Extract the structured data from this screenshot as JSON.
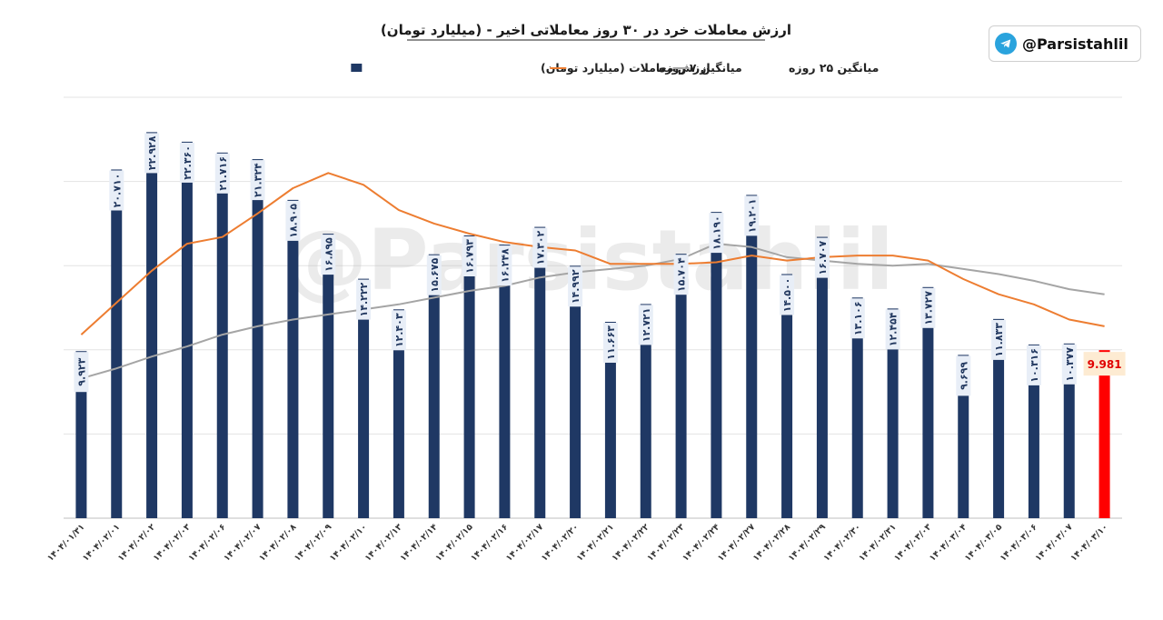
{
  "badge": {
    "handle": "@Parsistahlil",
    "icon": "telegram-icon"
  },
  "watermark": "@Parsistahlil",
  "colors": {
    "bars": "#1f3864",
    "last_bar": "#ff0000",
    "ma7": "#ed7d31",
    "ma25": "#a5a5a5",
    "label_bg": "#e8eef7"
  },
  "chart_data": {
    "type": "bar",
    "title": "ارزش معاملات خرد در ۳۰ روز معاملاتی اخیر - (میلیارد تومان)",
    "ylim": [
      0,
      25
    ],
    "grid": true,
    "legend_position": "top",
    "categories": [
      "۱۴۰۴/۰۱/۳۱",
      "۱۴۰۴/۰۲/۰۱",
      "۱۴۰۴/۰۲/۰۲",
      "۱۴۰۴/۰۲/۰۳",
      "۱۴۰۴/۰۲/۰۶",
      "۱۴۰۴/۰۲/۰۷",
      "۱۴۰۴/۰۲/۰۸",
      "۱۴۰۴/۰۲/۰۹",
      "۱۴۰۴/۰۲/۱۰",
      "۱۴۰۴/۰۲/۱۳",
      "۱۴۰۴/۰۲/۱۴",
      "۱۴۰۴/۰۲/۱۵",
      "۱۴۰۴/۰۲/۱۶",
      "۱۴۰۴/۰۲/۱۷",
      "۱۴۰۴/۰۲/۲۰",
      "۱۴۰۴/۰۲/۲۱",
      "۱۴۰۴/۰۲/۲۲",
      "۱۴۰۴/۰۲/۲۳",
      "۱۴۰۴/۰۲/۲۴",
      "۱۴۰۴/۰۲/۲۷",
      "۱۴۰۴/۰۲/۲۸",
      "۱۴۰۴/۰۲/۲۹",
      "۱۴۰۴/۰۲/۳۰",
      "۱۴۰۴/۰۲/۳۱",
      "۱۴۰۴/۰۳/۰۳",
      "۱۴۰۴/۰۳/۰۴",
      "۱۴۰۴/۰۳/۰۵",
      "۱۴۰۴/۰۳/۰۶",
      "۱۴۰۴/۰۳/۰۷",
      "۱۴۰۴/۰۳/۱۰"
    ],
    "series": [
      {
        "name": "ارزش معاملات (میلیارد تومان)",
        "type": "bar",
        "values": [
          9.923,
          20.71,
          22.928,
          22.36,
          21.716,
          21.324,
          18.905,
          16.895,
          14.222,
          12.403,
          15.675,
          16.793,
          16.248,
          17.302,
          14.992,
          11.663,
          12.721,
          15.704,
          18.19,
          19.201,
          14.5,
          16.707,
          13.106,
          12.454,
          13.727,
          9.699,
          11.833,
          10.316,
          10.377,
          9.981
        ],
        "labels": [
          "۹.۹۲۳",
          "۲۰.۷۱۰",
          "۲۲.۹۲۸",
          "۲۲.۳۶۰",
          "۲۱.۷۱۶",
          "۲۱.۳۲۴",
          "۱۸.۹۰۵",
          "۱۶.۸۹۵",
          "۱۴.۲۲۲",
          "۱۲.۴۰۳",
          "۱۵.۶۷۵",
          "۱۶.۷۹۳",
          "۱۶.۲۴۸",
          "۱۷.۳۰۲",
          "۱۴.۹۹۲",
          "۱۱.۶۶۳",
          "۱۲.۷۲۱",
          "۱۵.۷۰۴",
          "۱۸.۱۹۰",
          "۱۹.۲۰۱",
          "۱۴.۵۰۰",
          "۱۶.۷۰۷",
          "۱۳.۱۰۶",
          "۱۲.۴۵۴",
          "۱۳.۷۲۷",
          "۹.۶۹۹",
          "۱۱.۸۳۳",
          "۱۰.۳۱۶",
          "۱۰.۳۷۷",
          "9.981"
        ]
      },
      {
        "name": "میانگین ۷ روزه",
        "type": "line",
        "values": [
          10.9,
          12.8,
          14.7,
          16.3,
          16.7,
          18.1,
          19.6,
          20.5,
          19.8,
          18.3,
          17.5,
          16.9,
          16.4,
          16.1,
          15.9,
          15.1,
          15.1,
          15.1,
          15.2,
          15.6,
          15.3,
          15.5,
          15.6,
          15.6,
          15.3,
          14.2,
          13.3,
          12.7,
          11.8,
          11.4
        ]
      },
      {
        "name": "میانگین ۲۵ روزه",
        "type": "line",
        "values": [
          8.3,
          8.9,
          9.6,
          10.2,
          10.9,
          11.4,
          11.8,
          12.1,
          12.4,
          12.7,
          13.1,
          13.5,
          13.8,
          14.3,
          14.6,
          14.8,
          15.0,
          15.4,
          16.3,
          16.1,
          15.5,
          15.3,
          15.1,
          15.0,
          15.1,
          14.8,
          14.5,
          14.1,
          13.6,
          13.3
        ]
      }
    ]
  }
}
